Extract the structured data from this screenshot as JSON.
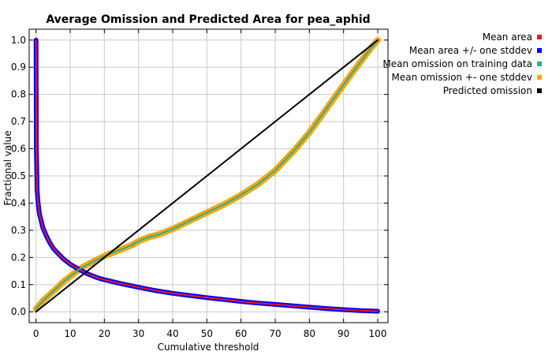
{
  "chart_data": {
    "type": "line",
    "title": "Average Omission and Predicted Area for pea_aphid",
    "xlabel": "Cumulative threshold",
    "ylabel": "Fractional value",
    "xlim": [
      -2,
      103
    ],
    "ylim": [
      -0.04,
      1.04
    ],
    "xticks": [
      0,
      10,
      20,
      30,
      40,
      50,
      60,
      70,
      80,
      90,
      100
    ],
    "yticks": [
      0.0,
      0.1,
      0.2,
      0.3,
      0.4,
      0.5,
      0.6,
      0.7,
      0.8,
      0.9,
      1.0
    ],
    "xtick_labels": [
      "0",
      "10",
      "20",
      "30",
      "40",
      "50",
      "60",
      "70",
      "80",
      "90",
      "100"
    ],
    "ytick_labels": [
      "0.0",
      "0.1",
      "0.2",
      "0.3",
      "0.4",
      "0.5",
      "0.6",
      "0.7",
      "0.8",
      "0.9",
      "1.0"
    ],
    "grid": true,
    "legend_position": "outside-right",
    "series": [
      {
        "name": "Mean area",
        "color": "#e41a1c",
        "style": "line",
        "x": [
          0,
          0.1,
          0.3,
          0.6,
          1,
          2,
          3,
          4,
          5,
          6,
          8,
          10,
          12,
          15,
          18,
          20,
          25,
          30,
          35,
          40,
          45,
          50,
          55,
          60,
          65,
          70,
          75,
          80,
          85,
          90,
          95,
          100
        ],
        "y": [
          1.0,
          0.6,
          0.45,
          0.4,
          0.36,
          0.31,
          0.28,
          0.255,
          0.235,
          0.22,
          0.195,
          0.175,
          0.16,
          0.14,
          0.125,
          0.118,
          0.103,
          0.09,
          0.078,
          0.068,
          0.06,
          0.052,
          0.045,
          0.038,
          0.032,
          0.027,
          0.022,
          0.017,
          0.012,
          0.008,
          0.004,
          0.002
        ]
      },
      {
        "name": "Mean area +/- one stddev",
        "color": "#0000ff",
        "style": "band",
        "x": [
          0,
          0.1,
          0.3,
          0.6,
          1,
          2,
          3,
          4,
          5,
          6,
          8,
          10,
          12,
          15,
          18,
          20,
          25,
          30,
          35,
          40,
          45,
          50,
          55,
          60,
          65,
          70,
          75,
          80,
          85,
          90,
          95,
          100
        ],
        "y": [
          1.0,
          0.6,
          0.45,
          0.4,
          0.36,
          0.31,
          0.28,
          0.255,
          0.235,
          0.22,
          0.195,
          0.175,
          0.16,
          0.14,
          0.125,
          0.118,
          0.103,
          0.09,
          0.078,
          0.068,
          0.06,
          0.052,
          0.045,
          0.038,
          0.032,
          0.027,
          0.022,
          0.017,
          0.012,
          0.008,
          0.004,
          0.002
        ]
      },
      {
        "name": "Mean omission on training data",
        "color": "#20b2aa",
        "style": "line",
        "x": [
          0,
          2,
          5,
          8,
          10,
          13,
          16,
          20,
          23,
          25,
          28,
          30,
          33,
          36,
          40,
          45,
          50,
          55,
          60,
          65,
          70,
          73,
          76,
          80,
          84,
          88,
          92,
          95,
          98,
          100
        ],
        "y": [
          0.01,
          0.04,
          0.075,
          0.11,
          0.13,
          0.16,
          0.18,
          0.205,
          0.22,
          0.23,
          0.245,
          0.26,
          0.275,
          0.285,
          0.305,
          0.335,
          0.365,
          0.395,
          0.43,
          0.47,
          0.52,
          0.56,
          0.6,
          0.66,
          0.73,
          0.8,
          0.87,
          0.92,
          0.97,
          1.0
        ]
      },
      {
        "name": "Mean omission +- one stddev",
        "color": "#ffa500",
        "style": "band",
        "x": [
          0,
          2,
          5,
          8,
          10,
          13,
          16,
          20,
          23,
          25,
          28,
          30,
          33,
          36,
          40,
          45,
          50,
          55,
          60,
          65,
          70,
          73,
          76,
          80,
          84,
          88,
          92,
          95,
          98,
          100
        ],
        "y": [
          0.01,
          0.04,
          0.075,
          0.11,
          0.13,
          0.16,
          0.18,
          0.205,
          0.22,
          0.23,
          0.245,
          0.26,
          0.275,
          0.285,
          0.305,
          0.335,
          0.365,
          0.395,
          0.43,
          0.47,
          0.52,
          0.56,
          0.6,
          0.66,
          0.73,
          0.8,
          0.87,
          0.92,
          0.97,
          1.0
        ]
      },
      {
        "name": "Predicted omission",
        "color": "#000000",
        "style": "line",
        "x": [
          0,
          100
        ],
        "y": [
          0,
          1
        ]
      }
    ]
  }
}
